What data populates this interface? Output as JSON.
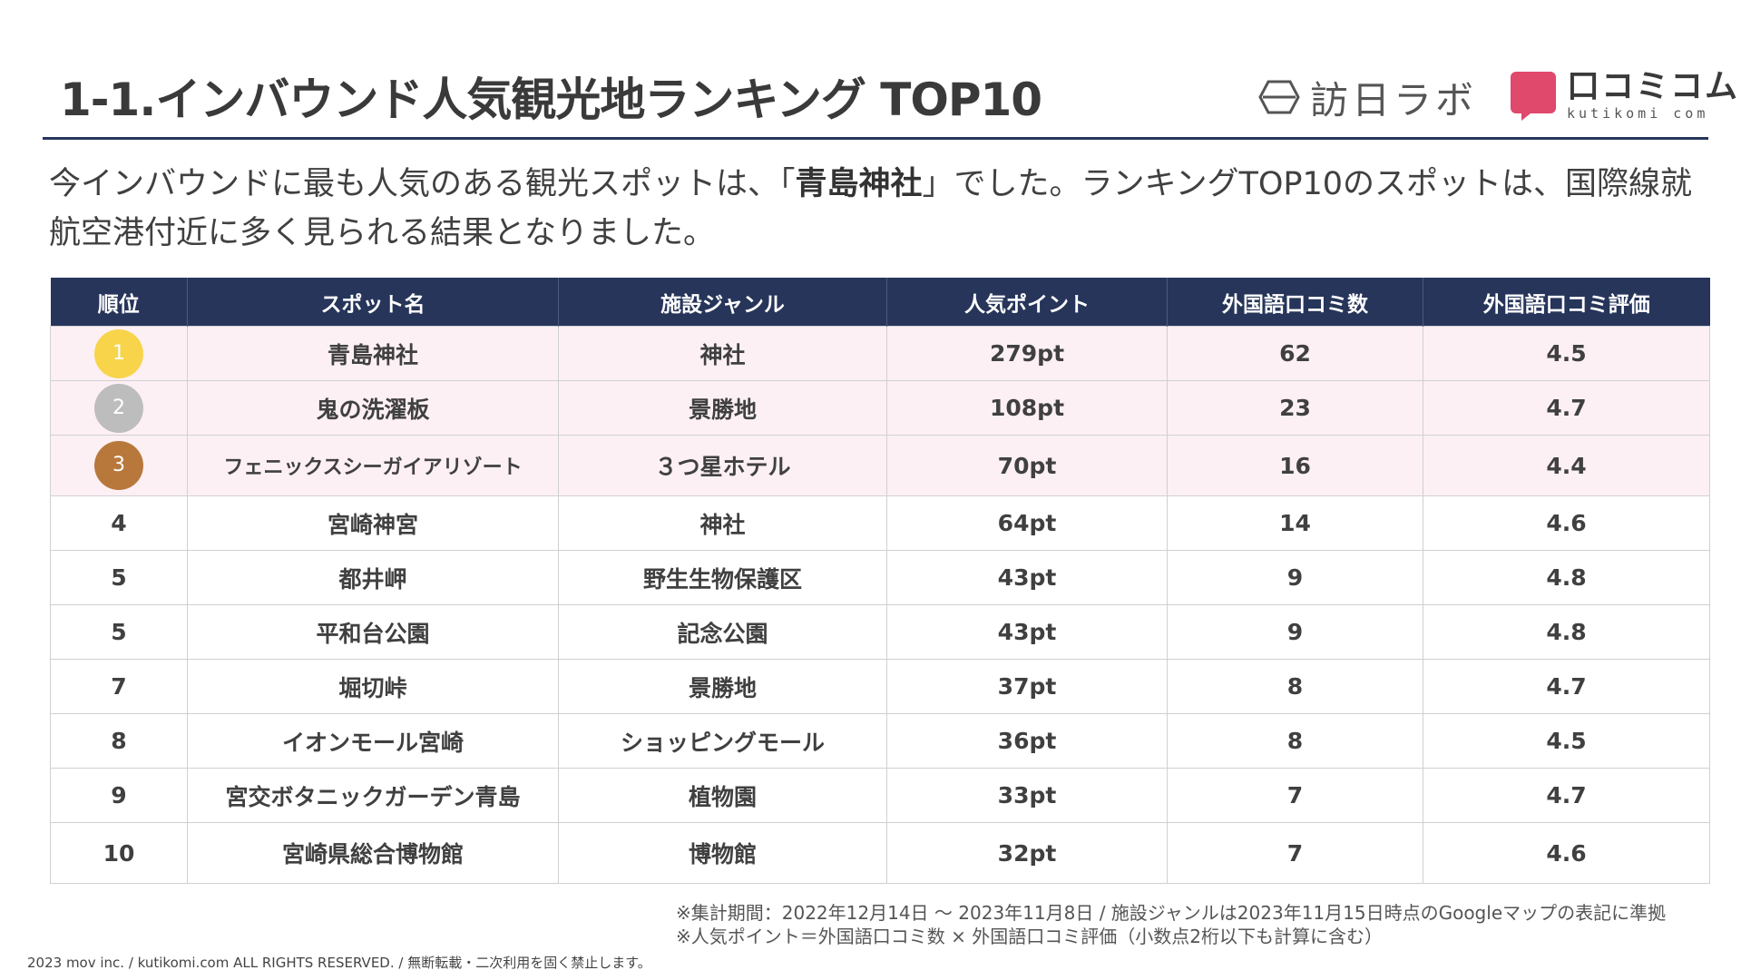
{
  "header": {
    "title": "1-1.インバウンド人気観光地ランキング TOP10",
    "logo_houjin": "訪日ラボ",
    "logo_kuchikomi": "口コミコム",
    "logo_kuchikomi_domain": "kutikomi com"
  },
  "lead": {
    "before": "今インバウンドに最も人気のある観光スポットは、「",
    "highlight": "青島神社",
    "after": "」でした。ランキングTOP10のスポットは、国際線就航空港付近に多く見られる結果となりました。"
  },
  "table": {
    "columns": [
      "順位",
      "スポット名",
      "施設ジャンル",
      "人気ポイント",
      "外国語口コミ数",
      "外国語口コミ評価"
    ],
    "rows": [
      {
        "rank": "1",
        "name": "青島神社",
        "genre": "神社",
        "points": "279pt",
        "reviews": "62",
        "rating": "4.5"
      },
      {
        "rank": "2",
        "name": "鬼の洗濯板",
        "genre": "景勝地",
        "points": "108pt",
        "reviews": "23",
        "rating": "4.7"
      },
      {
        "rank": "3",
        "name": "フェニックスシーガイアリゾート",
        "genre": "３つ星ホテル",
        "points": "70pt",
        "reviews": "16",
        "rating": "4.4"
      },
      {
        "rank": "4",
        "name": "宮崎神宮",
        "genre": "神社",
        "points": "64pt",
        "reviews": "14",
        "rating": "4.6"
      },
      {
        "rank": "5",
        "name": "都井岬",
        "genre": "野生生物保護区",
        "points": "43pt",
        "reviews": "9",
        "rating": "4.8"
      },
      {
        "rank": "5",
        "name": "平和台公園",
        "genre": "記念公園",
        "points": "43pt",
        "reviews": "9",
        "rating": "4.8"
      },
      {
        "rank": "7",
        "name": "堀切峠",
        "genre": "景勝地",
        "points": "37pt",
        "reviews": "8",
        "rating": "4.7"
      },
      {
        "rank": "8",
        "name": "イオンモール宮崎",
        "genre": "ショッピングモール",
        "points": "36pt",
        "reviews": "8",
        "rating": "4.5"
      },
      {
        "rank": "9",
        "name": "宮交ボタニックガーデン青島",
        "genre": "植物園",
        "points": "33pt",
        "reviews": "7",
        "rating": "4.7"
      },
      {
        "rank": "10",
        "name": "宮崎県総合博物館",
        "genre": "博物館",
        "points": "32pt",
        "reviews": "7",
        "rating": "4.6"
      }
    ]
  },
  "notes": [
    "※集計期間：2022年12月14日 〜 2023年11月8日 / 施設ジャンルは2023年11月15日時点のGoogleマップの表記に準拠",
    "※人気ポイント＝外国語口コミ数 × 外国語口コミ評価（小数点2桁以下も計算に含む）"
  ],
  "footer": "2023 mov inc. / kutikomi.com ALL RIGHTS RESERVED. / 無断転載・二次利用を固く禁止します。",
  "colors": {
    "navy": "#27355a",
    "gold": "#f7d44a",
    "silver": "#bdbdbd",
    "bronze": "#b8783c",
    "highlight_row": "#fdf0f4",
    "brand_pink": "#e0486c"
  }
}
